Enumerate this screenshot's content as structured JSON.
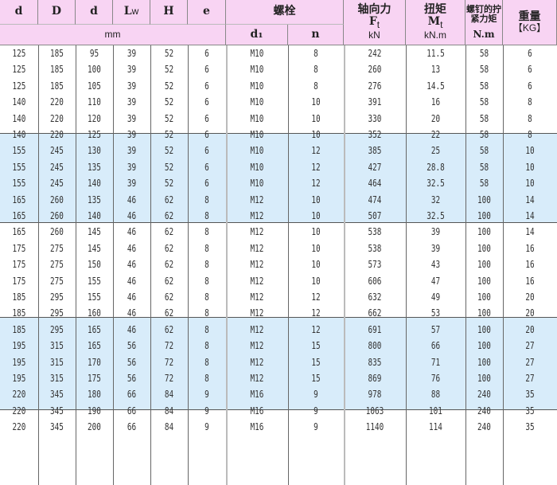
{
  "header": {
    "cols": [
      "d",
      "D",
      "d",
      "L",
      "H",
      "e"
    ],
    "lw_sub": "w",
    "bolt": "螺栓",
    "d1": "d₁",
    "n": "n",
    "mm": "mm",
    "axial": "轴向力",
    "ft": "F",
    "ft_sub": "t",
    "kn": "kN",
    "torque": "扭矩",
    "mt": "M",
    "mt_sub": "t",
    "knm": "kN.m",
    "tight": "螺钉的拧紧力矩",
    "nm": "N.m",
    "weight": "重量",
    "kg": "【KG】"
  },
  "colors": {
    "header_bg": "#f8d4f3",
    "highlight_bg": "#d8ecfa"
  },
  "rows": [
    [
      "125",
      "185",
      "95",
      "39",
      "52",
      "6",
      "M10",
      "8",
      "242",
      "11.5",
      "58",
      "6"
    ],
    [
      "125",
      "185",
      "100",
      "39",
      "52",
      "6",
      "M10",
      "8",
      "260",
      "13",
      "58",
      "6"
    ],
    [
      "125",
      "185",
      "105",
      "39",
      "52",
      "6",
      "M10",
      "8",
      "276",
      "14.5",
      "58",
      "6"
    ],
    [
      "140",
      "220",
      "110",
      "39",
      "52",
      "6",
      "M10",
      "10",
      "391",
      "16",
      "58",
      "8"
    ],
    [
      "140",
      "220",
      "120",
      "39",
      "52",
      "6",
      "M10",
      "10",
      "330",
      "20",
      "58",
      "8"
    ],
    [
      "140",
      "220",
      "125",
      "39",
      "52",
      "6",
      "M10",
      "10",
      "352",
      "22",
      "58",
      "8"
    ],
    [
      "155",
      "245",
      "130",
      "39",
      "52",
      "6",
      "M10",
      "12",
      "385",
      "25",
      "58",
      "10"
    ],
    [
      "155",
      "245",
      "135",
      "39",
      "52",
      "6",
      "M10",
      "12",
      "427",
      "28.8",
      "58",
      "10"
    ],
    [
      "155",
      "245",
      "140",
      "39",
      "52",
      "6",
      "M10",
      "12",
      "464",
      "32.5",
      "58",
      "10"
    ],
    [
      "165",
      "260",
      "135",
      "46",
      "62",
      "8",
      "M12",
      "10",
      "474",
      "32",
      "100",
      "14"
    ],
    [
      "165",
      "260",
      "140",
      "46",
      "62",
      "8",
      "M12",
      "10",
      "507",
      "32.5",
      "100",
      "14"
    ],
    [
      "165",
      "260",
      "145",
      "46",
      "62",
      "8",
      "M12",
      "10",
      "538",
      "39",
      "100",
      "14"
    ],
    [
      "175",
      "275",
      "145",
      "46",
      "62",
      "8",
      "M12",
      "10",
      "538",
      "39",
      "100",
      "16"
    ],
    [
      "175",
      "275",
      "150",
      "46",
      "62",
      "8",
      "M12",
      "10",
      "573",
      "43",
      "100",
      "16"
    ],
    [
      "175",
      "275",
      "155",
      "46",
      "62",
      "8",
      "M12",
      "10",
      "606",
      "47",
      "100",
      "16"
    ],
    [
      "185",
      "295",
      "155",
      "46",
      "62",
      "8",
      "M12",
      "12",
      "632",
      "49",
      "100",
      "20"
    ],
    [
      "185",
      "295",
      "160",
      "46",
      "62",
      "8",
      "M12",
      "12",
      "662",
      "53",
      "100",
      "20"
    ],
    [
      "185",
      "295",
      "165",
      "46",
      "62",
      "8",
      "M12",
      "12",
      "691",
      "57",
      "100",
      "20"
    ],
    [
      "195",
      "315",
      "165",
      "56",
      "72",
      "8",
      "M12",
      "15",
      "800",
      "66",
      "100",
      "27"
    ],
    [
      "195",
      "315",
      "170",
      "56",
      "72",
      "8",
      "M12",
      "15",
      "835",
      "71",
      "100",
      "27"
    ],
    [
      "195",
      "315",
      "175",
      "56",
      "72",
      "8",
      "M12",
      "15",
      "869",
      "76",
      "100",
      "27"
    ],
    [
      "220",
      "345",
      "180",
      "66",
      "84",
      "9",
      "M16",
      "9",
      "978",
      "88",
      "240",
      "35"
    ],
    [
      "220",
      "345",
      "190",
      "66",
      "84",
      "9",
      "M16",
      "9",
      "1063",
      "101",
      "240",
      "35"
    ],
    [
      "220",
      "345",
      "200",
      "66",
      "84",
      "9",
      "M16",
      "9",
      "1140",
      "114",
      "240",
      "35"
    ]
  ]
}
